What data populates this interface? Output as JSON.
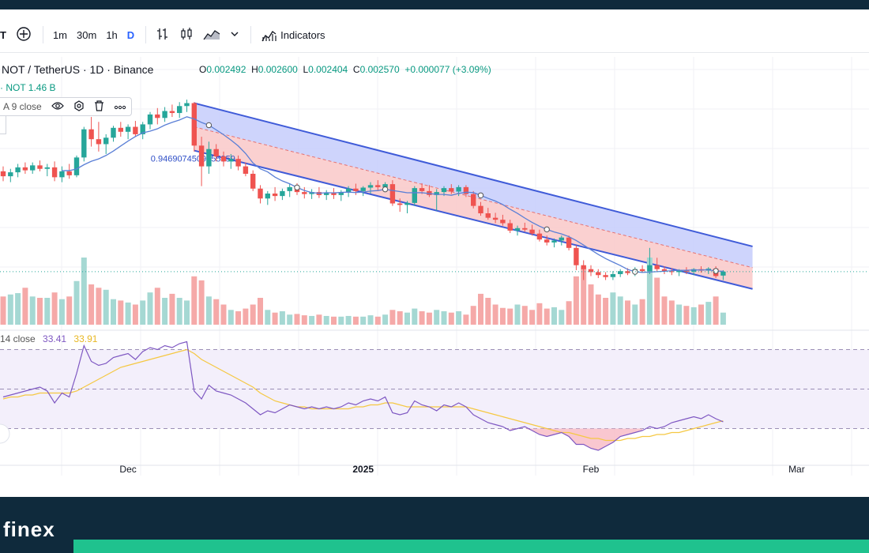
{
  "toolbar": {
    "cut_label": "T",
    "intervals": [
      "1m",
      "30m",
      "1h",
      "D"
    ],
    "indicators_label": "Indicators"
  },
  "legend": {
    "symbol_line": "NOT / TetherUS · 1D · Binance",
    "ohlc": {
      "o_key": "O",
      "o": "0.002492",
      "h_key": "H",
      "h": "0.002600",
      "l_key": "L",
      "l": "0.002404",
      "c_key": "C",
      "c": "0.002570",
      "change": "+0.000077 (+3.09%)"
    },
    "volume_line": "· NOT  1.46 B",
    "ma_label": "A 9 close",
    "rsi_line": "14 close",
    "rsi_value": "33.41",
    "rsi_ma_value": "33.91"
  },
  "annotation": "0.9469074509555359",
  "brand": {
    "logo": "finex"
  },
  "colors": {
    "up": "#26a69a",
    "down": "#ef5350",
    "channel_blue": "#c5cdfb",
    "channel_red": "#f9c8c8",
    "channel_line": "#3f5bd8",
    "ma": "#5a7fd6",
    "rsi": "#7e57c2",
    "rsi_ma": "#f5c842"
  },
  "chart_data": {
    "type": "candlestick",
    "title": "NOT / TetherUS · 1D · Binance",
    "x_tick_labels": [
      "Dec",
      "2025",
      "Feb",
      "Mar"
    ],
    "x_tick_index": [
      17,
      49,
      80,
      108
    ],
    "price_range": [
      0.0018,
      0.0065
    ],
    "candles": [
      [
        0.0046,
        0.0047,
        0.0044,
        0.0045
      ],
      [
        0.0045,
        0.00465,
        0.00438,
        0.00458
      ],
      [
        0.00458,
        0.00475,
        0.00448,
        0.00468
      ],
      [
        0.00468,
        0.00478,
        0.00455,
        0.00462
      ],
      [
        0.00462,
        0.00478,
        0.00455,
        0.00472
      ],
      [
        0.00472,
        0.00482,
        0.0046,
        0.00465
      ],
      [
        0.00465,
        0.00475,
        0.0045,
        0.00468
      ],
      [
        0.00468,
        0.0048,
        0.0044,
        0.00448
      ],
      [
        0.00448,
        0.0047,
        0.00438,
        0.0046
      ],
      [
        0.0046,
        0.00475,
        0.00445,
        0.00452
      ],
      [
        0.00452,
        0.00492,
        0.00448,
        0.00488
      ],
      [
        0.00488,
        0.0055,
        0.0048,
        0.00545
      ],
      [
        0.00545,
        0.0057,
        0.0051,
        0.00525
      ],
      [
        0.00525,
        0.0056,
        0.005,
        0.00515
      ],
      [
        0.00515,
        0.00535,
        0.00495,
        0.00528
      ],
      [
        0.00528,
        0.00552,
        0.0052,
        0.00548
      ],
      [
        0.00548,
        0.0056,
        0.0053,
        0.0054
      ],
      [
        0.0054,
        0.00555,
        0.00525,
        0.0055
      ],
      [
        0.0055,
        0.00562,
        0.0053,
        0.00535
      ],
      [
        0.00535,
        0.0056,
        0.00525,
        0.00555
      ],
      [
        0.00555,
        0.0058,
        0.00545,
        0.00575
      ],
      [
        0.00575,
        0.00588,
        0.00555,
        0.00568
      ],
      [
        0.00568,
        0.0059,
        0.0056,
        0.00582
      ],
      [
        0.00582,
        0.00595,
        0.0057,
        0.00578
      ],
      [
        0.00578,
        0.006,
        0.00568,
        0.00592
      ],
      [
        0.00592,
        0.00605,
        0.0058,
        0.00598
      ],
      [
        0.00598,
        0.006,
        0.005,
        0.00512
      ],
      [
        0.00512,
        0.0053,
        0.0043,
        0.0047
      ],
      [
        0.0047,
        0.0052,
        0.00455,
        0.00505
      ],
      [
        0.00505,
        0.00515,
        0.0048,
        0.0049
      ],
      [
        0.0049,
        0.005,
        0.0047,
        0.0048
      ],
      [
        0.0048,
        0.00495,
        0.00465,
        0.00485
      ],
      [
        0.00485,
        0.00492,
        0.00462,
        0.0047
      ],
      [
        0.0047,
        0.00478,
        0.0045,
        0.00455
      ],
      [
        0.00455,
        0.00462,
        0.0042,
        0.00425
      ],
      [
        0.00425,
        0.00432,
        0.00395,
        0.00405
      ],
      [
        0.00405,
        0.0042,
        0.00392,
        0.00415
      ],
      [
        0.00415,
        0.00428,
        0.004,
        0.0041
      ],
      [
        0.0041,
        0.00425,
        0.00402,
        0.0042
      ],
      [
        0.0042,
        0.00435,
        0.00408,
        0.00428
      ],
      [
        0.00428,
        0.00436,
        0.00412,
        0.00418
      ],
      [
        0.00418,
        0.00428,
        0.00405,
        0.00414
      ],
      [
        0.00414,
        0.00424,
        0.00404,
        0.00418
      ],
      [
        0.00418,
        0.00428,
        0.00406,
        0.00412
      ],
      [
        0.00412,
        0.00422,
        0.00402,
        0.00416
      ],
      [
        0.00416,
        0.00426,
        0.00404,
        0.00412
      ],
      [
        0.00412,
        0.00422,
        0.004,
        0.00418
      ],
      [
        0.00418,
        0.0043,
        0.00408,
        0.00425
      ],
      [
        0.00425,
        0.00435,
        0.00412,
        0.0042
      ],
      [
        0.0042,
        0.0043,
        0.0041,
        0.00427
      ],
      [
        0.00427,
        0.00438,
        0.00415,
        0.00432
      ],
      [
        0.00432,
        0.00442,
        0.0042,
        0.00428
      ],
      [
        0.00428,
        0.00438,
        0.00418,
        0.00434
      ],
      [
        0.00434,
        0.00442,
        0.0039,
        0.00395
      ],
      [
        0.00395,
        0.00405,
        0.00378,
        0.00392
      ],
      [
        0.00392,
        0.004,
        0.00375,
        0.00396
      ],
      [
        0.00396,
        0.0043,
        0.0039,
        0.00426
      ],
      [
        0.00426,
        0.00436,
        0.00414,
        0.0042
      ],
      [
        0.0042,
        0.00432,
        0.00408,
        0.00412
      ],
      [
        0.00412,
        0.00424,
        0.0038,
        0.00418
      ],
      [
        0.00418,
        0.0043,
        0.0041,
        0.00426
      ],
      [
        0.00426,
        0.00434,
        0.00414,
        0.00419
      ],
      [
        0.00419,
        0.00432,
        0.0041,
        0.00428
      ],
      [
        0.00428,
        0.00432,
        0.00408,
        0.00414
      ],
      [
        0.00414,
        0.0042,
        0.00385,
        0.0039
      ],
      [
        0.0039,
        0.00398,
        0.0037,
        0.00375
      ],
      [
        0.00375,
        0.00386,
        0.00362,
        0.00366
      ],
      [
        0.00366,
        0.00376,
        0.00355,
        0.00362
      ],
      [
        0.00362,
        0.00372,
        0.0035,
        0.00355
      ],
      [
        0.00355,
        0.00362,
        0.00335,
        0.0034
      ],
      [
        0.0034,
        0.0035,
        0.0033,
        0.00345
      ],
      [
        0.00345,
        0.00356,
        0.00338,
        0.00342
      ],
      [
        0.00342,
        0.00352,
        0.0033,
        0.00334
      ],
      [
        0.00334,
        0.00342,
        0.00318,
        0.00322
      ],
      [
        0.00322,
        0.0033,
        0.0031,
        0.00316
      ],
      [
        0.00316,
        0.00324,
        0.00306,
        0.0032
      ],
      [
        0.0032,
        0.0033,
        0.0031,
        0.00326
      ],
      [
        0.00326,
        0.0033,
        0.003,
        0.00305
      ],
      [
        0.00305,
        0.0031,
        0.0026,
        0.0027
      ],
      [
        0.0027,
        0.0028,
        0.0024,
        0.00262
      ],
      [
        0.00262,
        0.0027,
        0.00248,
        0.00256
      ],
      [
        0.00256,
        0.00262,
        0.00244,
        0.0025
      ],
      [
        0.0025,
        0.00256,
        0.0024,
        0.00246
      ],
      [
        0.00246,
        0.00258,
        0.0024,
        0.00252
      ],
      [
        0.00252,
        0.00262,
        0.00246,
        0.00258
      ],
      [
        0.00258,
        0.00264,
        0.0025,
        0.00254
      ],
      [
        0.00254,
        0.00266,
        0.00248,
        0.00262
      ],
      [
        0.00262,
        0.0027,
        0.00255,
        0.00258
      ],
      [
        0.00258,
        0.00305,
        0.00252,
        0.0027
      ],
      [
        0.0027,
        0.00285,
        0.00258,
        0.00262
      ],
      [
        0.00262,
        0.00268,
        0.00252,
        0.00258
      ],
      [
        0.00258,
        0.00264,
        0.0025,
        0.00256
      ],
      [
        0.00256,
        0.00262,
        0.00248,
        0.0026
      ],
      [
        0.0026,
        0.00266,
        0.00252,
        0.00257
      ],
      [
        0.00257,
        0.00264,
        0.0025,
        0.00262
      ],
      [
        0.00262,
        0.00268,
        0.00255,
        0.00259
      ],
      [
        0.00259,
        0.00266,
        0.00252,
        0.00263
      ],
      [
        0.00263,
        0.00268,
        0.00244,
        0.00248
      ],
      [
        0.00249,
        0.0026,
        0.0024,
        0.00257
      ]
    ],
    "volume_axis_max": 1.0,
    "volumes": [
      0.42,
      0.45,
      0.47,
      0.55,
      0.42,
      0.4,
      0.4,
      0.48,
      0.38,
      0.42,
      0.65,
      1.0,
      0.6,
      0.55,
      0.52,
      0.38,
      0.36,
      0.33,
      0.3,
      0.36,
      0.48,
      0.55,
      0.4,
      0.46,
      0.4,
      0.36,
      0.72,
      0.66,
      0.42,
      0.38,
      0.3,
      0.22,
      0.2,
      0.24,
      0.3,
      0.4,
      0.22,
      0.18,
      0.2,
      0.15,
      0.16,
      0.14,
      0.13,
      0.15,
      0.13,
      0.12,
      0.12,
      0.13,
      0.12,
      0.12,
      0.14,
      0.12,
      0.15,
      0.22,
      0.2,
      0.18,
      0.24,
      0.2,
      0.18,
      0.22,
      0.2,
      0.18,
      0.2,
      0.15,
      0.28,
      0.46,
      0.4,
      0.3,
      0.25,
      0.24,
      0.3,
      0.28,
      0.22,
      0.32,
      0.24,
      0.26,
      0.22,
      0.35,
      0.72,
      0.85,
      0.6,
      0.45,
      0.4,
      0.48,
      0.42,
      0.36,
      0.3,
      0.38,
      1.0,
      0.7,
      0.42,
      0.36,
      0.3,
      0.28,
      0.26,
      0.3,
      0.34,
      0.42,
      0.18
    ],
    "ma9_label": "9 close",
    "rsi": {
      "label": "14 close",
      "value": 33.41,
      "ma_value": 33.91,
      "range": [
        15,
        75
      ],
      "bands": [
        30,
        50,
        70
      ],
      "values": [
        46,
        47,
        48,
        49,
        50,
        51,
        49,
        43,
        48,
        46,
        58,
        72,
        64,
        62,
        63,
        66,
        67,
        68,
        65,
        69,
        71,
        70,
        72,
        71,
        73,
        74,
        49,
        45,
        52,
        49,
        48,
        47,
        45,
        43,
        40,
        37,
        39,
        38,
        40,
        42,
        41,
        40,
        41,
        40,
        41,
        40,
        41,
        43,
        42,
        44,
        45,
        44,
        46,
        38,
        37,
        38,
        44,
        42,
        41,
        39,
        42,
        41,
        43,
        41,
        37,
        35,
        33,
        32,
        31,
        29,
        30,
        31,
        29,
        27,
        26,
        27,
        28,
        26,
        22,
        22,
        20,
        19,
        21,
        23,
        26,
        27,
        28,
        29,
        31,
        30,
        31,
        33,
        34,
        35,
        36,
        35,
        37,
        35,
        33.41
      ],
      "ma_values": [
        45,
        46,
        46,
        47,
        47,
        48,
        48,
        48,
        48,
        48,
        49,
        51,
        53,
        55,
        57,
        59,
        61,
        62,
        63,
        64,
        65,
        66,
        67,
        68,
        69,
        70,
        68,
        65,
        63,
        61,
        59,
        57,
        55,
        53,
        51,
        48,
        46,
        44,
        43,
        42,
        41,
        41,
        40,
        40,
        40,
        40,
        40,
        40,
        41,
        41,
        42,
        42,
        43,
        43,
        42,
        41,
        41,
        41,
        41,
        41,
        41,
        41,
        41,
        41,
        40,
        39,
        38,
        37,
        36,
        35,
        34,
        33,
        32,
        31,
        30,
        29,
        28,
        28,
        27,
        26,
        25,
        25,
        24,
        24,
        24,
        25,
        25,
        26,
        26,
        27,
        27,
        28,
        28,
        29,
        30,
        31,
        32,
        33,
        33.91
      ]
    },
    "channel_upper": [
      [
        26,
        0.00598
      ],
      [
        102,
        0.00308
      ]
    ],
    "channel_lower": [
      [
        26,
        0.00502
      ],
      [
        102,
        0.00222
      ]
    ],
    "channel_mid": [
      [
        26,
        0.0055
      ],
      [
        102,
        0.00265
      ]
    ]
  }
}
